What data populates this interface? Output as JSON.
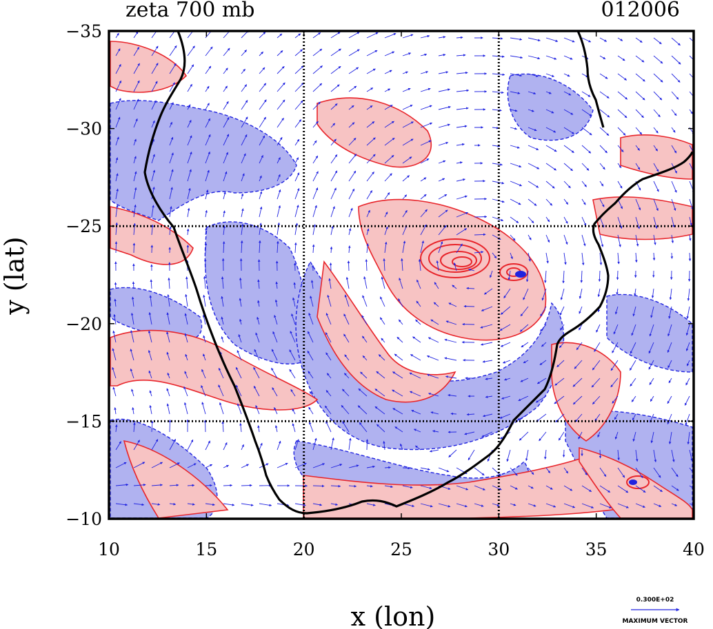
{
  "title_left": "zeta 700 mb",
  "title_right": "012006",
  "x_axis": {
    "label": "x (lon)",
    "min": 10,
    "max": 40,
    "ticks": [
      "10",
      "15",
      "20",
      "25",
      "30",
      "35",
      "40"
    ]
  },
  "y_axis": {
    "label": "y (lat)",
    "min": -35,
    "max": -10,
    "ticks": [
      "-35",
      "-30",
      "-25",
      "-20",
      "-15",
      "-10"
    ]
  },
  "grid_lines": {
    "lon": [
      20,
      30
    ],
    "lat": [
      -25,
      -15
    ]
  },
  "legend": {
    "value": "0.300E+02",
    "label": "MAXIMUM VECTOR"
  },
  "colors": {
    "positive_fill": "#f7c3c3",
    "positive_line": "#e8242a",
    "negative_fill": "#b0b2f0",
    "negative_line": "#1f22e0",
    "coastline": "#000000",
    "vector": "#1f22e0"
  }
}
